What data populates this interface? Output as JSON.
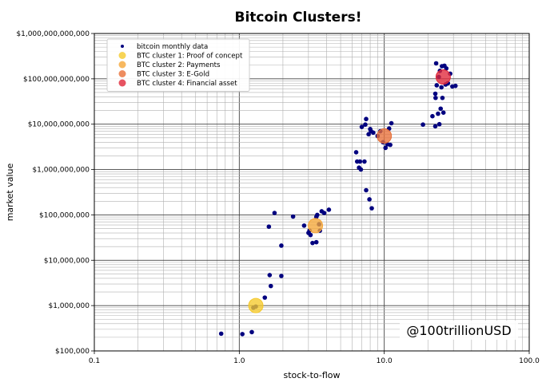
{
  "chart_data": {
    "type": "scatter",
    "title": "Bitcoin Clusters!",
    "xlabel": "stock-to-flow",
    "ylabel": "market value",
    "x_scale": "log",
    "y_scale": "log",
    "xlim": [
      0.1,
      100
    ],
    "ylim": [
      100000,
      1000000000000
    ],
    "grid": true,
    "legend_position": "top-left",
    "x_ticks": [
      {
        "value": 0.1,
        "label": "0.1"
      },
      {
        "value": 1,
        "label": "1.0"
      },
      {
        "value": 10,
        "label": "10.0"
      },
      {
        "value": 100,
        "label": "100.0"
      }
    ],
    "y_ticks": [
      {
        "value": 100000,
        "label": "$100,000"
      },
      {
        "value": 1000000,
        "label": "$1,000,000"
      },
      {
        "value": 10000000,
        "label": "$10,000,000"
      },
      {
        "value": 100000000,
        "label": "$100,000,000"
      },
      {
        "value": 1000000000,
        "label": "$1,000,000,000"
      },
      {
        "value": 10000000000,
        "label": "$10,000,000,000"
      },
      {
        "value": 100000000000,
        "label": "$100,000,000,000"
      },
      {
        "value": 1000000000000,
        "label": "$1,000,000,000,000"
      }
    ],
    "watermark": "@100trillionUSD",
    "series": [
      {
        "name": "bitcoin monthly data",
        "color": "#00007f",
        "marker": "small-dot",
        "points": [
          [
            0.75,
            240000
          ],
          [
            1.05,
            235000
          ],
          [
            1.22,
            260000
          ],
          [
            1.25,
            900000
          ],
          [
            1.3,
            950000
          ],
          [
            1.5,
            1500000
          ],
          [
            1.62,
            4700000
          ],
          [
            1.65,
            2700000
          ],
          [
            1.95,
            4500000
          ],
          [
            1.95,
            21000000
          ],
          [
            1.6,
            55000000
          ],
          [
            1.75,
            110000000
          ],
          [
            2.35,
            92000000
          ],
          [
            2.8,
            58000000
          ],
          [
            3.0,
            40000000
          ],
          [
            3.05,
            45000000
          ],
          [
            3.1,
            36000000
          ],
          [
            3.2,
            24000000
          ],
          [
            3.4,
            25000000
          ],
          [
            3.4,
            90000000
          ],
          [
            3.45,
            100000000
          ],
          [
            3.55,
            62000000
          ],
          [
            3.6,
            45000000
          ],
          [
            3.7,
            120000000
          ],
          [
            3.85,
            110000000
          ],
          [
            4.15,
            130000000
          ],
          [
            6.4,
            2400000000
          ],
          [
            6.5,
            1500000000
          ],
          [
            6.7,
            1100000000
          ],
          [
            6.8,
            1500000000
          ],
          [
            6.9,
            1000000000
          ],
          [
            7.0,
            8700000000
          ],
          [
            7.3,
            1500000000
          ],
          [
            7.4,
            9800000000
          ],
          [
            7.5,
            13000000000
          ],
          [
            7.5,
            350000000
          ],
          [
            7.8,
            6000000000
          ],
          [
            7.9,
            220000000
          ],
          [
            8.0,
            7800000000
          ],
          [
            8.2,
            140000000
          ],
          [
            8.1,
            7000000000
          ],
          [
            8.4,
            6500000000
          ],
          [
            9.0,
            5500000000
          ],
          [
            9.4,
            7000000000
          ],
          [
            9.8,
            4000000000
          ],
          [
            10.2,
            3000000000
          ],
          [
            10.5,
            3600000000
          ],
          [
            10.8,
            8000000000
          ],
          [
            11.0,
            3500000000
          ],
          [
            11.2,
            10500000000
          ],
          [
            18.5,
            9800000000
          ],
          [
            21.5,
            15000000000
          ],
          [
            22.5,
            9000000000
          ],
          [
            22.8,
            220000000000
          ],
          [
            22.5,
            47000000000
          ],
          [
            22.6,
            38000000000
          ],
          [
            23.0,
            72000000000
          ],
          [
            23.5,
            17000000000
          ],
          [
            23.8,
            110000000000
          ],
          [
            24.0,
            10000000000
          ],
          [
            24.2,
            150000000000
          ],
          [
            24.5,
            22000000000
          ],
          [
            24.8,
            65000000000
          ],
          [
            25.0,
            190000000000
          ],
          [
            25.2,
            38000000000
          ],
          [
            25.6,
            18000000000
          ],
          [
            26.0,
            195000000000
          ],
          [
            26.5,
            75000000000
          ],
          [
            26.8,
            170000000000
          ],
          [
            27.5,
            80000000000
          ],
          [
            28.5,
            130000000000
          ],
          [
            29.5,
            68000000000
          ],
          [
            31.0,
            70000000000
          ]
        ]
      },
      {
        "name": "BTC cluster 1: Proof of concept",
        "color": "#f5c92c",
        "marker": "big-dot",
        "points": [
          [
            1.3,
            1000000
          ]
        ]
      },
      {
        "name": "BTC cluster 2: Payments",
        "color": "#f5a638",
        "marker": "big-dot",
        "points": [
          [
            3.35,
            58000000
          ]
        ]
      },
      {
        "name": "BTC cluster 3: E-Gold",
        "color": "#e87038",
        "marker": "big-dot",
        "points": [
          [
            10.0,
            5500000000
          ]
        ]
      },
      {
        "name": "BTC cluster 4: Financial asset",
        "color": "#e0283a",
        "marker": "big-dot",
        "points": [
          [
            25.5,
            110000000000
          ]
        ]
      }
    ]
  }
}
